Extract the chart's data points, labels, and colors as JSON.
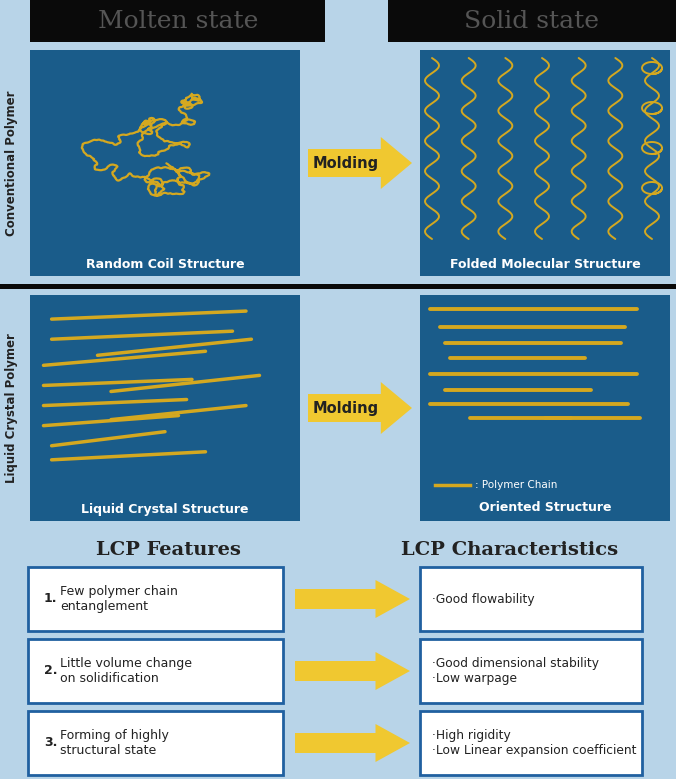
{
  "bg_color": "#b8d4e8",
  "blue_box": "#1a5c8a",
  "gold": "#d4a820",
  "arrow_gold": "#f0c830",
  "white": "#ffffff",
  "dark_gray": "#222222",
  "mid_gray": "#555555",
  "header_bg": "#0a0a0a",
  "border_blue": "#2060a0",
  "molten_title": "Molten state",
  "solid_title": "Solid state",
  "conv_label": "Conventional Polymer",
  "lcp_label": "Liquid Crystal Polymer",
  "random_coil_text": "Random Coil Structure",
  "folded_text": "Folded Molecular Structure",
  "lc_text": "Liquid Crystal Structure",
  "oriented_text": "Oriented Structure",
  "molding_text": "Molding",
  "polymer_chain_text": ": Polymer Chain",
  "lcp_features_title": "LCP Features",
  "lcp_char_title": "LCP Characteristics",
  "features": [
    {
      "num": "1.",
      "text": "Few polymer chain\nentanglement"
    },
    {
      "num": "2.",
      "text": "Little volume change\non solidification"
    },
    {
      "num": "3.",
      "text": "Forming of highly\nstructural state"
    }
  ],
  "characteristics": [
    {
      "text": "·Good flowability"
    },
    {
      "text": "·Good dimensional stability\n·Low warpage"
    },
    {
      "text": "·High rigidity\n·Low Linear expansion coefficient"
    }
  ]
}
